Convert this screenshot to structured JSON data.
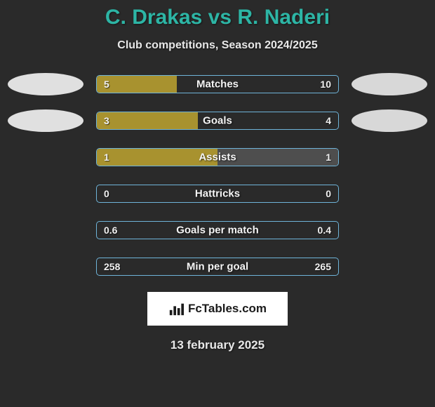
{
  "title": "C. Drakas vs R. Naderi",
  "subtitle": "Club competitions, Season 2024/2025",
  "colors": {
    "background": "#2a2a2a",
    "title_color": "#2db5a5",
    "text_color": "#e8e8e8",
    "bar_border": "#6fb4d9",
    "bar_left_fill": "#a8922f",
    "bar_right_fill": "#4e4e4e",
    "ellipse_left": "#e0e0e0",
    "ellipse_right": "#d8d8d8",
    "logo_bg": "#ffffff"
  },
  "stats": [
    {
      "label": "Matches",
      "left_val": "5",
      "right_val": "10",
      "left_pct": 33,
      "right_pct": 0,
      "show_ellipses": true
    },
    {
      "label": "Goals",
      "left_val": "3",
      "right_val": "4",
      "left_pct": 42,
      "right_pct": 0,
      "show_ellipses": true
    },
    {
      "label": "Assists",
      "left_val": "1",
      "right_val": "1",
      "left_pct": 50,
      "right_pct": 50,
      "show_ellipses": false
    },
    {
      "label": "Hattricks",
      "left_val": "0",
      "right_val": "0",
      "left_pct": 0,
      "right_pct": 0,
      "show_ellipses": false
    },
    {
      "label": "Goals per match",
      "left_val": "0.6",
      "right_val": "0.4",
      "left_pct": 0,
      "right_pct": 0,
      "show_ellipses": false
    },
    {
      "label": "Min per goal",
      "left_val": "258",
      "right_val": "265",
      "left_pct": 0,
      "right_pct": 0,
      "show_ellipses": false
    }
  ],
  "logo_text": "FcTables.com",
  "date_text": "13 february 2025"
}
